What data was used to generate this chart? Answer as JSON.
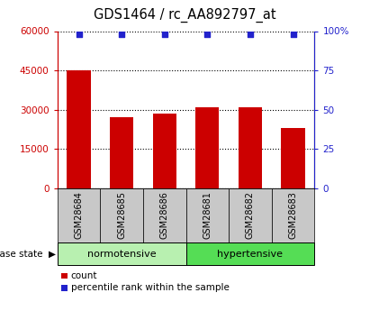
{
  "title": "GDS1464 / rc_AA892797_at",
  "samples": [
    "GSM28684",
    "GSM28685",
    "GSM28686",
    "GSM28681",
    "GSM28682",
    "GSM28683"
  ],
  "bar_values": [
    45000,
    27000,
    28500,
    31000,
    31000,
    23000
  ],
  "percentile_values": [
    98,
    98,
    98,
    98,
    98,
    98
  ],
  "bar_color": "#cc0000",
  "dot_color": "#2222cc",
  "left_ylim": [
    0,
    60000
  ],
  "right_ylim": [
    0,
    100
  ],
  "left_yticks": [
    0,
    15000,
    30000,
    45000,
    60000
  ],
  "right_yticks": [
    0,
    25,
    50,
    75,
    100
  ],
  "left_yticklabels": [
    "0",
    "15000",
    "30000",
    "45000",
    "60000"
  ],
  "right_yticklabels": [
    "0",
    "25",
    "50",
    "75",
    "100%"
  ],
  "groups": [
    {
      "label": "normotensive",
      "indices": [
        0,
        1,
        2
      ],
      "color": "#b8f0b0"
    },
    {
      "label": "hypertensive",
      "indices": [
        3,
        4,
        5
      ],
      "color": "#55dd55"
    }
  ],
  "bg_color": "#ffffff",
  "tick_box_color": "#c8c8c8",
  "grid_color": "#000000",
  "title_fontsize": 10.5,
  "bar_width": 0.55
}
